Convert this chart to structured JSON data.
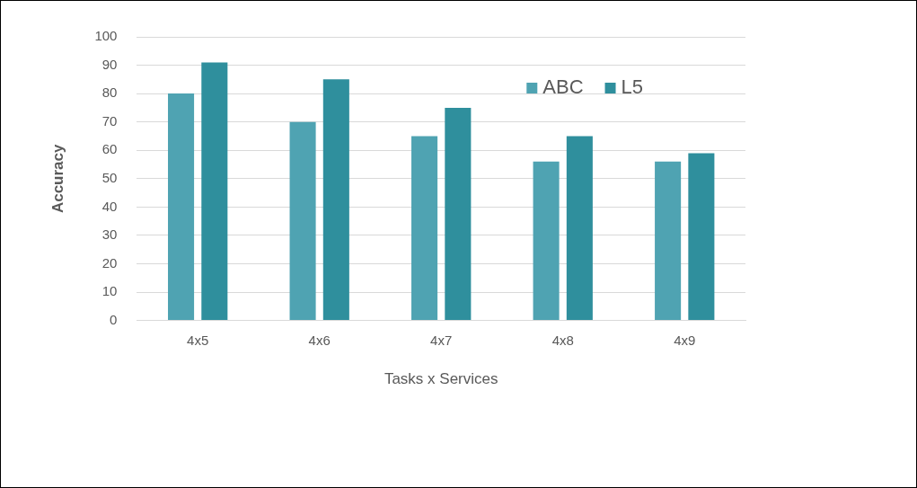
{
  "chart_data": {
    "type": "bar",
    "xlabel": "Tasks x Services",
    "ylabel": "Accuracy",
    "categories": [
      "4x5",
      "4x6",
      "4x7",
      "4x8",
      "4x9"
    ],
    "series": [
      {
        "name": "ABC",
        "color": "#4fa3b2",
        "values": [
          80,
          70,
          65,
          56,
          56
        ]
      },
      {
        "name": "L5",
        "color": "#2f8f9d",
        "values": [
          91,
          85,
          75,
          65,
          59
        ]
      }
    ],
    "ylim": [
      0,
      100
    ],
    "yticks": [
      0,
      10,
      20,
      30,
      40,
      50,
      60,
      70,
      80,
      90,
      100
    ],
    "grid": "y",
    "legend": "top right"
  }
}
